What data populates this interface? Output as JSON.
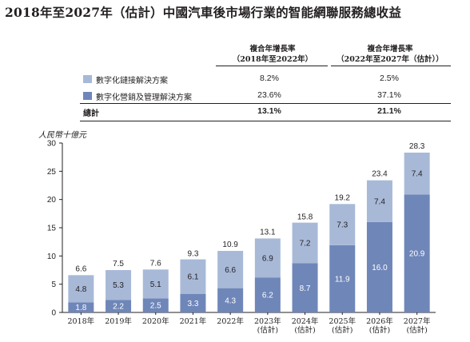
{
  "title": "2018年至2027年（估計）中國汽車後市場行業的智能網聯服務總收益",
  "cagr_table": {
    "headers": [
      {
        "line1": "複合年增長率",
        "line2": "（2018年至2022年）"
      },
      {
        "line1": "複合年增長率",
        "line2": "（2022年至2027年（估計））"
      }
    ],
    "rows": [
      {
        "label": "數字化鏈接解決方案",
        "swatch": "#a8b9d8",
        "values": [
          "8.2%",
          "2.5%"
        ]
      },
      {
        "label": "數字化營銷及管理解決方案",
        "swatch": "#6f86b9",
        "values": [
          "23.6%",
          "37.1%"
        ]
      }
    ],
    "total": {
      "label": "總計",
      "values": [
        "13.1%",
        "21.1%"
      ]
    }
  },
  "unit_label": "人民幣十億元",
  "chart_data": {
    "type": "bar",
    "stacked": true,
    "categories": [
      [
        "2018年"
      ],
      [
        "2019年"
      ],
      [
        "2020年"
      ],
      [
        "2021年"
      ],
      [
        "2022年"
      ],
      [
        "2023年",
        "(估計)"
      ],
      [
        "2024年",
        "(估計)"
      ],
      [
        "2025年",
        "(估計)"
      ],
      [
        "2026年",
        "(估計)"
      ],
      [
        "2027年",
        "(估計)"
      ]
    ],
    "series": [
      {
        "name": "數字化營銷及管理解決方案",
        "color": "#6f86b9",
        "values": [
          1.8,
          2.2,
          2.5,
          3.3,
          4.3,
          6.2,
          8.7,
          11.9,
          16.0,
          20.9
        ]
      },
      {
        "name": "數字化鏈接解決方案",
        "color": "#a8b9d8",
        "values": [
          4.8,
          5.3,
          5.1,
          6.1,
          6.6,
          6.9,
          7.2,
          7.3,
          7.4,
          7.4
        ]
      }
    ],
    "totals": [
      6.6,
      7.5,
      7.6,
      9.3,
      10.9,
      13.1,
      15.8,
      19.2,
      23.4,
      28.3
    ],
    "ylim": [
      0,
      30
    ],
    "yticks": [
      0,
      5,
      10,
      15,
      20,
      25,
      30
    ],
    "grid": false
  }
}
